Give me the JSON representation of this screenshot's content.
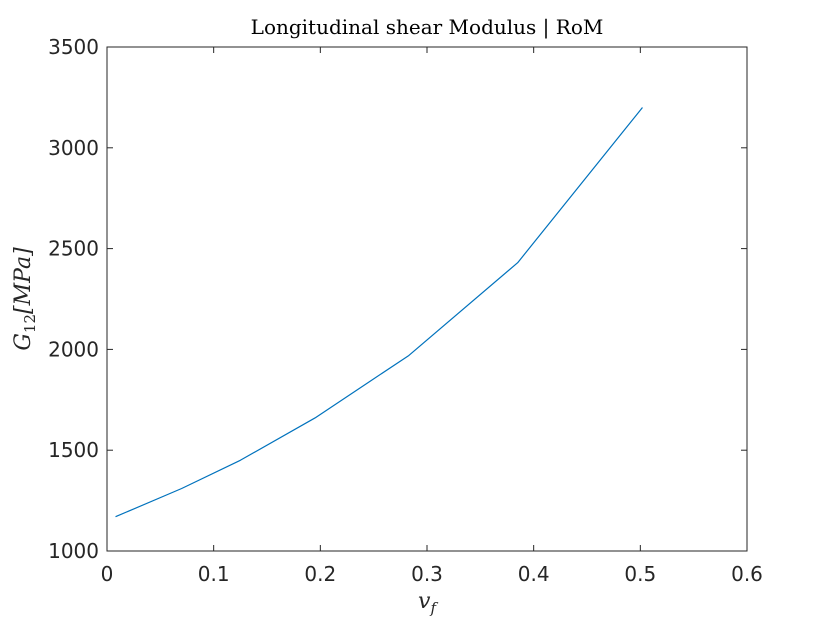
{
  "chart_data": {
    "type": "line",
    "title": "Longitudinal shear Modulus | RoM",
    "xlabel": "v_f",
    "xlabel_main": "v",
    "xlabel_sub": "f",
    "ylabel": "G_12[MPa]",
    "ylabel_main": "G",
    "ylabel_sub": "12",
    "ylabel_rest": "[MPa]",
    "xlim": [
      0,
      0.6
    ],
    "ylim": [
      1000,
      3500
    ],
    "xticks": [
      0,
      0.1,
      0.2,
      0.3,
      0.4,
      0.5,
      0.6
    ],
    "xtick_labels": [
      "0",
      "0.1",
      "0.2",
      "0.3",
      "0.4",
      "0.5",
      "0.6"
    ],
    "yticks": [
      1000,
      1500,
      2000,
      2500,
      3000,
      3500
    ],
    "ytick_labels": [
      "1000",
      "1500",
      "2000",
      "2500",
      "3000",
      "3500"
    ],
    "grid": false,
    "legend": "none",
    "series": [
      {
        "color": "#0072BD",
        "x": [
          0.008,
          0.07,
          0.125,
          0.195,
          0.283,
          0.385,
          0.502
        ],
        "y": [
          1170,
          1310,
          1450,
          1660,
          1970,
          2430,
          3200
        ]
      }
    ]
  }
}
